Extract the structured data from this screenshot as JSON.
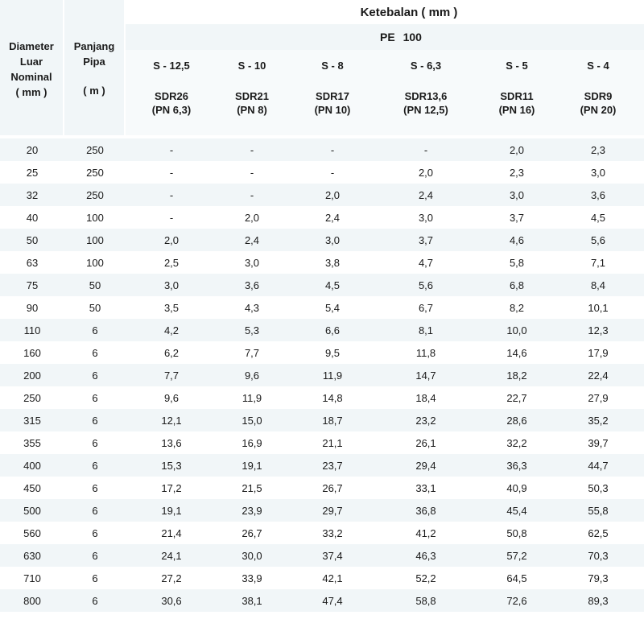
{
  "header": {
    "diameter": "Diameter Luar Nominal ( mm )",
    "diameter_lines": [
      "Diameter",
      "Luar",
      "Nominal",
      "( mm )"
    ],
    "panjang_lines": [
      "Panjang",
      "Pipa",
      "( m )"
    ],
    "ketebalan": "Ketebalan ( mm )",
    "material": "PE 100",
    "columns": [
      {
        "s": "S - 12,5",
        "sdr": "SDR26",
        "pn": "(PN 6,3)"
      },
      {
        "s": "S - 10",
        "sdr": "SDR21",
        "pn": "(PN 8)"
      },
      {
        "s": "S - 8",
        "sdr": "SDR17",
        "pn": "(PN 10)"
      },
      {
        "s": "S - 6,3",
        "sdr": "SDR13,6",
        "pn": "(PN 12,5)"
      },
      {
        "s": "S - 5",
        "sdr": "SDR11",
        "pn": "(PN 16)"
      },
      {
        "s": "S - 4",
        "sdr": "SDR9",
        "pn": "(PN 20)"
      }
    ]
  },
  "rows": [
    {
      "d": "20",
      "p": "250",
      "v": [
        "-",
        "-",
        "-",
        "-",
        "2,0",
        "2,3"
      ]
    },
    {
      "d": "25",
      "p": "250",
      "v": [
        "-",
        "-",
        "-",
        "2,0",
        "2,3",
        "3,0"
      ]
    },
    {
      "d": "32",
      "p": "250",
      "v": [
        "-",
        "-",
        "2,0",
        "2,4",
        "3,0",
        "3,6"
      ]
    },
    {
      "d": "40",
      "p": "100",
      "v": [
        "-",
        "2,0",
        "2,4",
        "3,0",
        "3,7",
        "4,5"
      ]
    },
    {
      "d": "50",
      "p": "100",
      "v": [
        "2,0",
        "2,4",
        "3,0",
        "3,7",
        "4,6",
        "5,6"
      ]
    },
    {
      "d": "63",
      "p": "100",
      "v": [
        "2,5",
        "3,0",
        "3,8",
        "4,7",
        "5,8",
        "7,1"
      ]
    },
    {
      "d": "75",
      "p": "50",
      "v": [
        "3,0",
        "3,6",
        "4,5",
        "5,6",
        "6,8",
        "8,4"
      ]
    },
    {
      "d": "90",
      "p": "50",
      "v": [
        "3,5",
        "4,3",
        "5,4",
        "6,7",
        "8,2",
        "10,1"
      ]
    },
    {
      "d": "110",
      "p": "6",
      "v": [
        "4,2",
        "5,3",
        "6,6",
        "8,1",
        "10,0",
        "12,3"
      ]
    },
    {
      "d": "160",
      "p": "6",
      "v": [
        "6,2",
        "7,7",
        "9,5",
        "11,8",
        "14,6",
        "17,9"
      ]
    },
    {
      "d": "200",
      "p": "6",
      "v": [
        "7,7",
        "9,6",
        "11,9",
        "14,7",
        "18,2",
        "22,4"
      ]
    },
    {
      "d": "250",
      "p": "6",
      "v": [
        "9,6",
        "11,9",
        "14,8",
        "18,4",
        "22,7",
        "27,9"
      ]
    },
    {
      "d": "315",
      "p": "6",
      "v": [
        "12,1",
        "15,0",
        "18,7",
        "23,2",
        "28,6",
        "35,2"
      ]
    },
    {
      "d": "355",
      "p": "6",
      "v": [
        "13,6",
        "16,9",
        "21,1",
        "26,1",
        "32,2",
        "39,7"
      ]
    },
    {
      "d": "400",
      "p": "6",
      "v": [
        "15,3",
        "19,1",
        "23,7",
        "29,4",
        "36,3",
        "44,7"
      ]
    },
    {
      "d": "450",
      "p": "6",
      "v": [
        "17,2",
        "21,5",
        "26,7",
        "33,1",
        "40,9",
        "50,3"
      ]
    },
    {
      "d": "500",
      "p": "6",
      "v": [
        "19,1",
        "23,9",
        "29,7",
        "36,8",
        "45,4",
        "55,8"
      ]
    },
    {
      "d": "560",
      "p": "6",
      "v": [
        "21,4",
        "26,7",
        "33,2",
        "41,2",
        "50,8",
        "62,5"
      ]
    },
    {
      "d": "630",
      "p": "6",
      "v": [
        "24,1",
        "30,0",
        "37,4",
        "46,3",
        "57,2",
        "70,3"
      ]
    },
    {
      "d": "710",
      "p": "6",
      "v": [
        "27,2",
        "33,9",
        "42,1",
        "52,2",
        "64,5",
        "79,3"
      ]
    },
    {
      "d": "800",
      "p": "6",
      "v": [
        "30,6",
        "38,1",
        "47,4",
        "58,8",
        "72,6",
        "89,3"
      ]
    }
  ]
}
